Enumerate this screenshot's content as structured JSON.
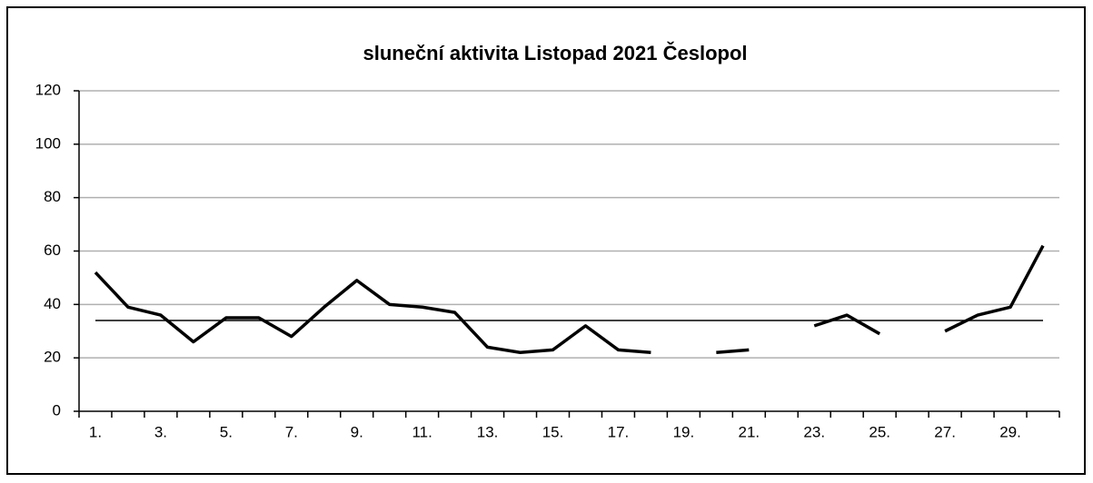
{
  "chart_data": {
    "type": "line",
    "title": "sluneční aktivita Listopad 2021 Česlopol",
    "categories": [
      "1.",
      null,
      "3.",
      null,
      "5.",
      null,
      "7.",
      null,
      "9.",
      null,
      "11.",
      null,
      "13.",
      null,
      "15.",
      null,
      "17.",
      null,
      "19.",
      null,
      "21.",
      null,
      "23.",
      null,
      "25.",
      null,
      "27.",
      null,
      "29.",
      null
    ],
    "series": [
      {
        "color": "#000000",
        "values": [
          52,
          39,
          36,
          26,
          35,
          35,
          28,
          39,
          49,
          40,
          39,
          37,
          24,
          22,
          23,
          32,
          23,
          22,
          null,
          22,
          23,
          null,
          32,
          36,
          29,
          null,
          30,
          36,
          39,
          62
        ]
      }
    ],
    "average": 34,
    "ylim": [
      0,
      120
    ],
    "yticks": [
      0,
      20,
      40,
      60,
      80,
      100,
      120
    ],
    "grid": true
  }
}
